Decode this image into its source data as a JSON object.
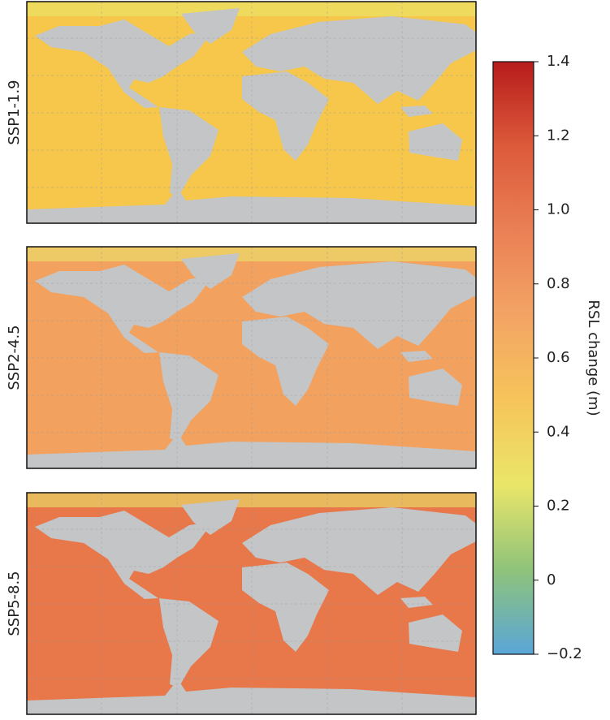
{
  "panels": [
    {
      "label": "SSP1-1.9",
      "ocean_color": "#f6c74a"
    },
    {
      "label": "SSP2-4.5",
      "ocean_color": "#f3a15e"
    },
    {
      "label": "SSP5-8.5",
      "ocean_color": "#e8774a"
    }
  ],
  "colorbar": {
    "label": "RSL change (m)",
    "lim": [
      -0.2,
      1.4
    ],
    "ticks": [
      {
        "value": -0.2,
        "label": "−0.2"
      },
      0,
      0.2,
      0.4,
      0.6,
      0.8,
      {
        "value": 1,
        "label": "1.0"
      },
      1.2,
      1.4
    ],
    "colors": [
      "#5aa6d8",
      "#8fc37a",
      "#eae66a",
      "#f6c45a",
      "#f3a465",
      "#ea8055",
      "#dc5a3a",
      "#b71c1c"
    ]
  }
}
